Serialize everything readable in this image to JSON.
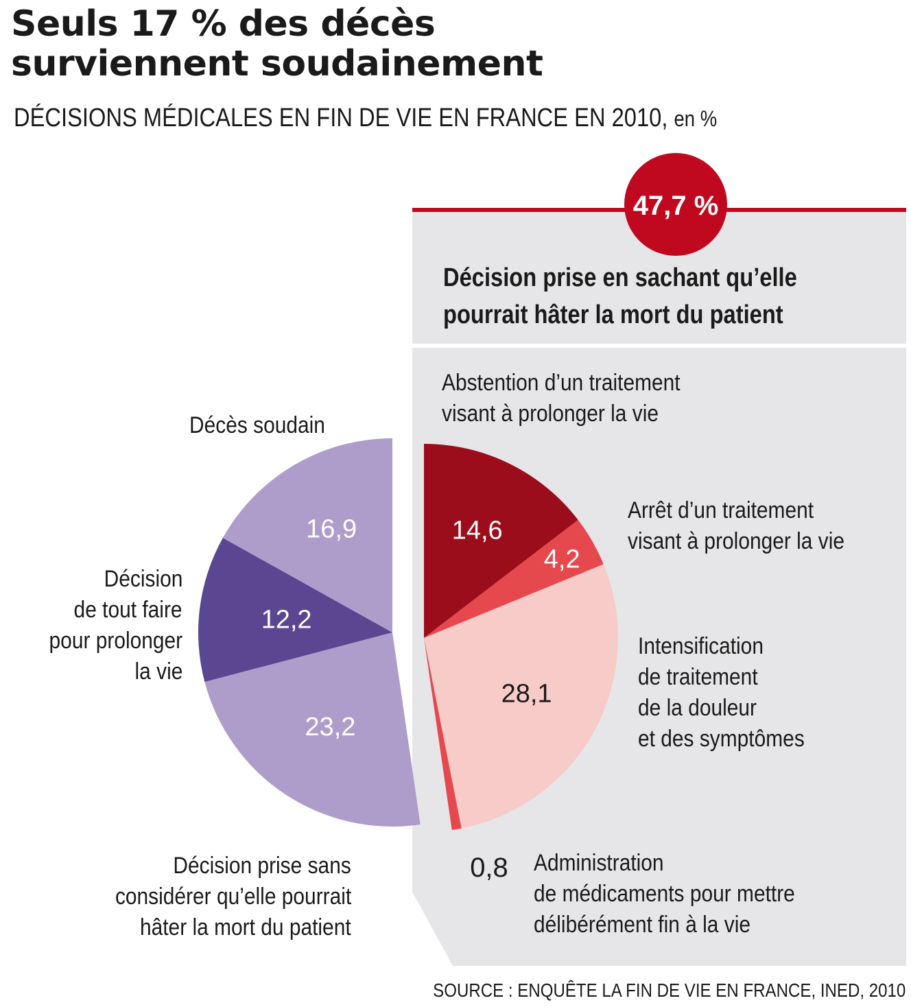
{
  "title_line1": "Seuls 17 % des décès",
  "title_line2": "surviennent soudainement",
  "subtitle": "DÉCISIONS MÉDICALES EN FIN DE VIE  EN FRANCE EN 2010,",
  "subtitle_unit": "en %",
  "badge": "47,7 %",
  "panel_title_line1": "Décision prise en sachant qu’elle",
  "panel_title_line2": "pourrait hâter la mort du patient",
  "left_group_label": [
    "Décision prise sans",
    "considérer qu’elle pourrait",
    "hâter la mort du patient"
  ],
  "source": "SOURCE : ENQUÊTE LA FIN DE VIE EN FRANCE, INED, 2010",
  "colors": {
    "badge_red": "#c0091f",
    "panel_gray": "#e6e6e8",
    "light_purple": "#ae9dcb",
    "dark_purple": "#5b4692",
    "dark_red": "#9c0d1c",
    "mid_red": "#e5484d",
    "pink": "#f6cbc8"
  },
  "chart_data": {
    "type": "pie",
    "unit": "%",
    "slices": [
      {
        "label": "Abstention d’un traitement visant à prolonger la vie",
        "value": 14.6,
        "value_label": "14,6",
        "color": "#9c0d1c",
        "group": "right"
      },
      {
        "label": "Arrêt d’un traitement visant à  prolonger la vie",
        "value": 4.2,
        "value_label": "4,2",
        "color": "#e5484d",
        "group": "right"
      },
      {
        "label": "Intensification de traitement de la douleur et des symptômes",
        "value": 28.1,
        "value_label": "28,1",
        "color": "#f6cbc8",
        "group": "right"
      },
      {
        "label": "Administration de médicaments pour mettre délibérément fin à la vie",
        "value": 0.8,
        "value_label": "0,8",
        "color": "#e5484d",
        "group": "right"
      },
      {
        "label": "Décision prise sans considérer qu’elle pourrait hâter la mort du patient",
        "value": 23.2,
        "value_label": "23,2",
        "color": "#ae9dcb",
        "group": "left"
      },
      {
        "label": "Décision de tout faire pour prolonger la vie",
        "value": 12.2,
        "value_label": "12,2",
        "color": "#5b4692",
        "group": "left"
      },
      {
        "label": "Décès soudain",
        "value": 16.9,
        "value_label": "16,9",
        "color": "#ae9dcb",
        "group": "left"
      }
    ],
    "group_total": {
      "label": "Décision prise en sachant qu’elle pourrait hâter la mort du patient",
      "value": 47.7,
      "value_label": "47,7 %"
    },
    "category_labels": {
      "abstention": [
        "Abstention d’un traitement",
        "visant à prolonger la vie"
      ],
      "arret": [
        "Arrêt d’un traitement",
        "visant à  prolonger la vie"
      ],
      "intensification": [
        "Intensification",
        "de traitement",
        "de la douleur",
        "et des symptômes"
      ],
      "administration": [
        "Administration",
        "de médicaments pour mettre",
        "délibérément fin à la vie"
      ],
      "deces": [
        "Décès soudain"
      ],
      "tout_faire": [
        "Décision",
        "de tout faire",
        "pour prolonger",
        "la vie"
      ]
    }
  }
}
